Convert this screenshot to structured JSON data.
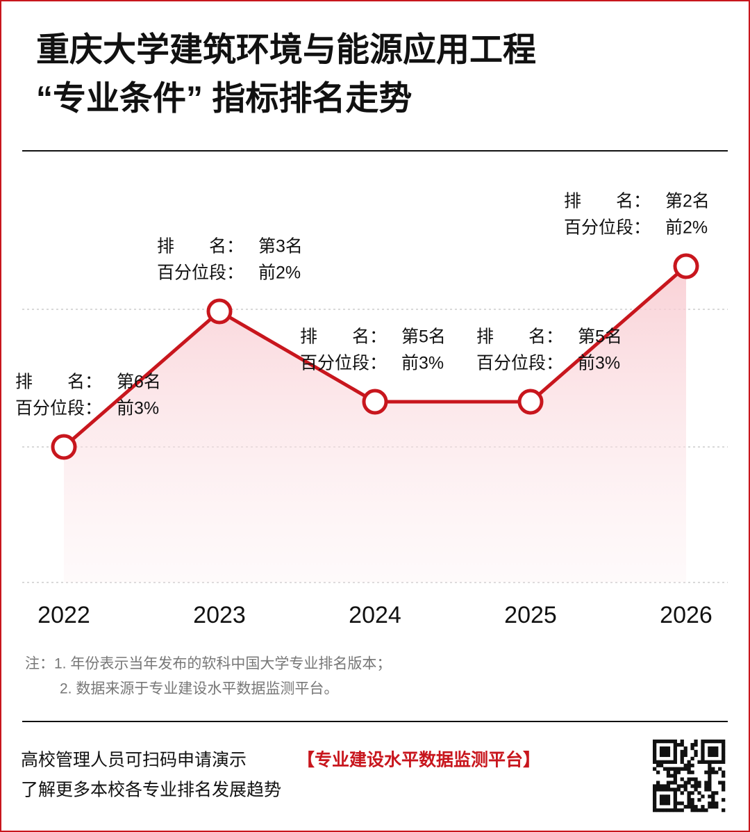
{
  "chart_data": {
    "type": "line",
    "title": "重庆大学建筑环境与能源应用工程",
    "subtitle": "“专业条件” 指标排名走势",
    "categories": [
      "2022",
      "2023",
      "2024",
      "2025",
      "2026"
    ],
    "ylim": [
      9,
      1
    ],
    "rank_label": "排　　名：",
    "percentile_label": "百分位段：",
    "series": [
      {
        "name": "排名",
        "color": "#c8161d",
        "values": [
          6,
          3,
          5,
          5,
          2
        ],
        "value_labels": [
          "第6名",
          "第3名",
          "第5名",
          "第5名",
          "第2名"
        ]
      },
      {
        "name": "百分位段",
        "values": [
          3,
          2,
          3,
          3,
          2
        ],
        "value_labels": [
          "前3%",
          "前2%",
          "前3%",
          "前3%",
          "前2%"
        ]
      }
    ],
    "notes": [
      "注：1. 年份表示当年发布的软科中国大学专业排名版本；",
      "2. 数据来源于专业建设水平数据监测平台。"
    ],
    "footer": [
      "高校管理人员可扫码申请演示",
      "【专业建设水平数据监测平台】",
      "了解更多本校各专业排名发展趋势"
    ]
  }
}
